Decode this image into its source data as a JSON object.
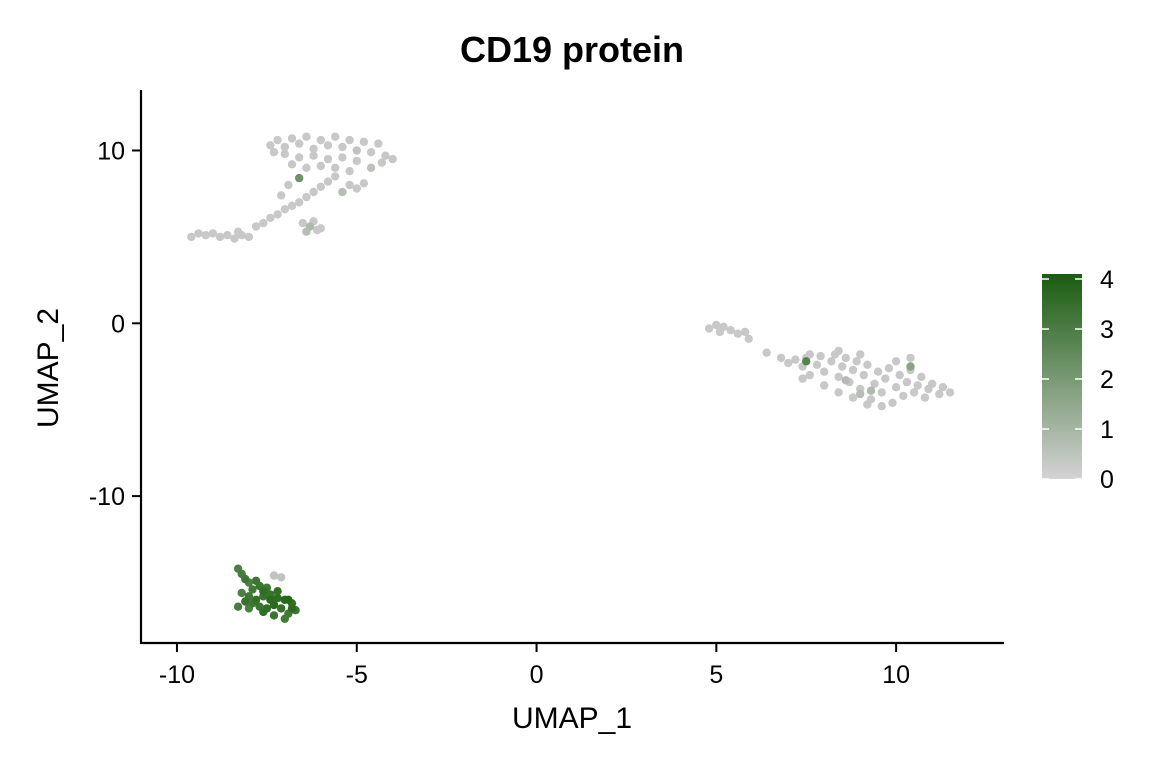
{
  "chart_data": {
    "type": "scatter",
    "title": "CD19 protein",
    "xlabel": "UMAP_1",
    "ylabel": "UMAP_2",
    "xlim": [
      -11.0,
      13.0
    ],
    "ylim": [
      -18.5,
      13.5
    ],
    "xticks": [
      -10,
      -5,
      0,
      5,
      10
    ],
    "xtick_labels": [
      "-10",
      "-5",
      "0",
      "5",
      "10"
    ],
    "yticks": [
      10,
      0,
      -10
    ],
    "ytick_labels": [
      "10",
      "0",
      "-10"
    ],
    "grid": false,
    "legend": {
      "type": "colorbar",
      "placement": "right",
      "min": 0,
      "max": 4.1,
      "ticks": [
        4,
        3,
        2,
        1,
        0
      ],
      "tick_labels": [
        "4",
        "3",
        "2",
        "1",
        "0"
      ],
      "color_low": "#d3d3d3",
      "color_high": "#1a5c10"
    },
    "colors": {
      "point_low": "#c8c8c8",
      "point_high": "#1e6412",
      "axis": "#000000"
    },
    "clusters": [
      {
        "name": "",
        "description_points": [
          [
            -9.6,
            5.0
          ],
          [
            -9.4,
            5.2
          ],
          [
            -9.2,
            5.1
          ],
          [
            -9.0,
            5.2
          ],
          [
            -8.8,
            5.0
          ],
          [
            -8.6,
            5.1
          ],
          [
            -8.4,
            4.9
          ],
          [
            -8.2,
            5.1
          ],
          [
            -8.0,
            5.0
          ],
          [
            -8.3,
            5.3
          ],
          [
            -7.8,
            5.6
          ],
          [
            -7.6,
            5.8
          ],
          [
            -7.4,
            6.1
          ],
          [
            -7.2,
            6.3
          ],
          [
            -7.0,
            6.6
          ],
          [
            -6.8,
            6.8
          ],
          [
            -6.6,
            7.0
          ],
          [
            -6.4,
            7.3
          ],
          [
            -6.2,
            7.6
          ],
          [
            -6.0,
            7.9
          ],
          [
            -5.8,
            8.2
          ],
          [
            -5.6,
            8.5
          ],
          [
            -5.2,
            8.0
          ],
          [
            -5.4,
            7.6
          ],
          [
            -5.0,
            7.8
          ],
          [
            -4.8,
            8.1
          ],
          [
            -6.5,
            5.8
          ],
          [
            -6.3,
            5.6
          ],
          [
            -6.1,
            5.4
          ],
          [
            -6.4,
            5.3
          ],
          [
            -6.0,
            5.5
          ],
          [
            -6.2,
            5.9
          ],
          [
            -7.4,
            10.3
          ],
          [
            -7.2,
            10.6
          ],
          [
            -7.0,
            10.2
          ],
          [
            -6.8,
            10.7
          ],
          [
            -6.6,
            10.4
          ],
          [
            -6.4,
            10.8
          ],
          [
            -6.2,
            10.1
          ],
          [
            -6.0,
            10.6
          ],
          [
            -5.8,
            10.3
          ],
          [
            -5.6,
            10.8
          ],
          [
            -5.4,
            10.2
          ],
          [
            -5.2,
            10.6
          ],
          [
            -5.0,
            10.0
          ],
          [
            -4.8,
            10.5
          ],
          [
            -4.6,
            9.9
          ],
          [
            -4.4,
            10.4
          ],
          [
            -4.2,
            9.7
          ],
          [
            -4.0,
            9.5
          ],
          [
            -4.3,
            9.3
          ],
          [
            -4.6,
            9.0
          ],
          [
            -5.0,
            9.4
          ],
          [
            -5.4,
            9.6
          ],
          [
            -5.8,
            9.5
          ],
          [
            -6.2,
            9.7
          ],
          [
            -6.6,
            9.6
          ],
          [
            -7.0,
            9.8
          ],
          [
            -7.3,
            9.9
          ],
          [
            -6.8,
            9.2
          ],
          [
            -6.4,
            9.0
          ],
          [
            -6.0,
            9.1
          ],
          [
            -5.6,
            9.0
          ],
          [
            -5.2,
            8.8
          ],
          [
            -6.6,
            8.4
          ],
          [
            -6.9,
            8.0
          ],
          [
            -7.1,
            7.4
          ]
        ],
        "description_values": [
          0,
          0,
          0,
          0,
          0,
          0,
          0,
          0,
          0,
          0,
          0,
          0,
          0,
          0,
          0,
          0,
          0,
          0,
          0,
          0,
          0,
          0,
          0,
          0.4,
          0,
          0,
          0,
          0.6,
          0,
          0.4,
          0,
          0,
          0,
          0,
          0,
          0,
          0,
          0,
          0,
          0,
          0,
          0,
          0,
          0,
          0.2,
          0,
          0,
          0,
          0,
          0,
          0,
          0.3,
          0,
          0,
          0,
          0,
          0,
          0,
          0,
          0,
          0,
          0,
          0,
          0,
          2.2,
          0,
          0
        ]
      },
      {
        "name": "",
        "description_points": [
          [
            4.8,
            -0.3
          ],
          [
            5.0,
            -0.1
          ],
          [
            5.2,
            -0.2
          ],
          [
            5.4,
            -0.4
          ],
          [
            5.1,
            -0.5
          ],
          [
            5.6,
            -0.6
          ],
          [
            5.8,
            -0.5
          ],
          [
            5.9,
            -0.9
          ],
          [
            6.4,
            -1.7
          ],
          [
            6.8,
            -2.0
          ],
          [
            7.0,
            -2.3
          ],
          [
            7.2,
            -2.1
          ],
          [
            7.4,
            -2.5
          ],
          [
            7.5,
            -2.0
          ],
          [
            7.6,
            -3.0
          ],
          [
            7.8,
            -2.4
          ],
          [
            7.9,
            -1.9
          ],
          [
            8.0,
            -2.8
          ],
          [
            8.2,
            -2.2
          ],
          [
            8.3,
            -1.8
          ],
          [
            8.4,
            -3.1
          ],
          [
            8.5,
            -2.5
          ],
          [
            8.6,
            -2.0
          ],
          [
            8.7,
            -3.4
          ],
          [
            8.8,
            -2.7
          ],
          [
            8.9,
            -2.2
          ],
          [
            9.0,
            -3.8
          ],
          [
            9.1,
            -3.0
          ],
          [
            9.2,
            -2.4
          ],
          [
            9.3,
            -4.4
          ],
          [
            9.4,
            -3.5
          ],
          [
            9.5,
            -2.8
          ],
          [
            9.6,
            -4.0
          ],
          [
            9.7,
            -3.2
          ],
          [
            9.8,
            -2.6
          ],
          [
            9.9,
            -4.6
          ],
          [
            10.0,
            -3.7
          ],
          [
            10.1,
            -3.0
          ],
          [
            10.2,
            -4.2
          ],
          [
            10.3,
            -3.4
          ],
          [
            10.4,
            -2.7
          ],
          [
            10.5,
            -4.0
          ],
          [
            10.6,
            -3.6
          ],
          [
            10.7,
            -3.1
          ],
          [
            10.8,
            -4.3
          ],
          [
            10.9,
            -3.8
          ],
          [
            11.0,
            -3.5
          ],
          [
            11.2,
            -4.1
          ],
          [
            11.3,
            -3.7
          ],
          [
            11.5,
            -4.0
          ],
          [
            8.4,
            -4.0
          ],
          [
            8.8,
            -4.3
          ],
          [
            9.2,
            -4.7
          ],
          [
            9.6,
            -4.8
          ],
          [
            8.0,
            -3.6
          ],
          [
            7.4,
            -3.2
          ],
          [
            10.0,
            -2.2
          ],
          [
            10.4,
            -2.0
          ],
          [
            9.0,
            -1.8
          ],
          [
            8.4,
            -1.6
          ],
          [
            7.6,
            -1.8
          ],
          [
            7.5,
            -2.2
          ],
          [
            8.6,
            -3.3
          ],
          [
            9.3,
            -3.9
          ],
          [
            10.4,
            -2.5
          ],
          [
            9.0,
            -4.1
          ]
        ],
        "description_values": [
          0,
          0,
          0,
          0,
          0,
          0,
          0,
          0,
          0,
          0,
          0,
          0,
          0,
          0,
          0,
          0,
          0,
          0,
          0,
          0,
          0,
          0,
          0,
          0,
          0,
          0,
          0,
          0,
          0,
          0,
          0,
          0,
          0,
          0,
          0,
          0,
          0,
          0,
          0,
          0,
          0,
          0,
          0,
          0,
          0,
          0,
          0,
          0,
          0,
          0,
          0,
          0,
          0,
          0,
          0,
          0,
          0,
          0,
          0,
          0,
          0,
          2.8,
          0.5,
          0.6,
          1.5,
          0.4
        ]
      },
      {
        "name": "",
        "description_points": [
          [
            -8.3,
            -14.2
          ],
          [
            -8.2,
            -14.5
          ],
          [
            -8.1,
            -14.8
          ],
          [
            -8.0,
            -15.0
          ],
          [
            -7.8,
            -14.9
          ],
          [
            -7.9,
            -15.4
          ],
          [
            -8.2,
            -15.6
          ],
          [
            -8.0,
            -15.8
          ],
          [
            -7.8,
            -16.0
          ],
          [
            -7.6,
            -15.8
          ],
          [
            -7.4,
            -16.0
          ],
          [
            -7.2,
            -15.9
          ],
          [
            -7.0,
            -16.0
          ],
          [
            -6.8,
            -16.2
          ],
          [
            -6.7,
            -16.6
          ],
          [
            -6.9,
            -16.8
          ],
          [
            -7.1,
            -16.5
          ],
          [
            -7.3,
            -16.3
          ],
          [
            -7.5,
            -16.5
          ],
          [
            -7.7,
            -16.4
          ],
          [
            -7.9,
            -16.2
          ],
          [
            -8.1,
            -16.1
          ],
          [
            -8.3,
            -16.4
          ],
          [
            -7.6,
            -16.7
          ],
          [
            -7.3,
            -16.9
          ],
          [
            -7.0,
            -17.1
          ],
          [
            -6.9,
            -16.0
          ],
          [
            -7.2,
            -15.5
          ],
          [
            -7.5,
            -15.3
          ],
          [
            -7.7,
            -15.2
          ],
          [
            -7.3,
            -14.6
          ],
          [
            -7.1,
            -14.7
          ],
          [
            -7.6,
            -15.5
          ],
          [
            -7.4,
            -15.7
          ],
          [
            -8.0,
            -16.5
          ],
          [
            -6.8,
            -16.5
          ]
        ],
        "description_values": [
          3.0,
          3.1,
          3.3,
          3.0,
          3.4,
          3.2,
          3.0,
          3.3,
          3.6,
          3.5,
          3.8,
          3.7,
          3.9,
          3.5,
          3.4,
          3.2,
          3.6,
          3.8,
          3.7,
          3.4,
          3.3,
          3.5,
          3.1,
          3.6,
          3.4,
          3.2,
          3.9,
          3.6,
          3.3,
          3.4,
          0.2,
          0.2,
          3.7,
          3.5,
          3.0,
          3.8
        ]
      }
    ]
  }
}
